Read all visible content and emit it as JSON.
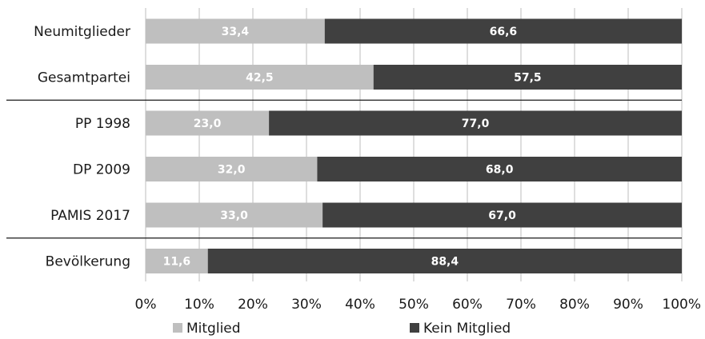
{
  "chart_data": {
    "type": "bar",
    "orientation": "horizontal",
    "stacked": true,
    "categories": [
      "Neumitglieder",
      "Gesamtpartei",
      "PP 1998",
      "DP 2009",
      "PAMIS 2017",
      "Bevölkerung"
    ],
    "series": [
      {
        "name": "Mitglied",
        "color": "#bfbfbf",
        "values": [
          33.4,
          42.5,
          23.0,
          32.0,
          33.0,
          11.6
        ],
        "labels": [
          "33,4",
          "42,5",
          "23,0",
          "32,0",
          "33,0",
          "11,6"
        ]
      },
      {
        "name": "Kein Mitglied",
        "color": "#404040",
        "values": [
          66.6,
          57.5,
          77.0,
          68.0,
          67.0,
          88.4
        ],
        "labels": [
          "66,6",
          "57,5",
          "77,0",
          "68,0",
          "67,0",
          "88,4"
        ]
      }
    ],
    "xlim": [
      0,
      100
    ],
    "xticks": [
      "0%",
      "10%",
      "20%",
      "30%",
      "40%",
      "50%",
      "60%",
      "70%",
      "80%",
      "90%",
      "100%"
    ],
    "xgrid": true,
    "group_separators_after": [
      "Gesamtpartei",
      "PAMIS 2017"
    ],
    "legend_position": "bottom"
  }
}
